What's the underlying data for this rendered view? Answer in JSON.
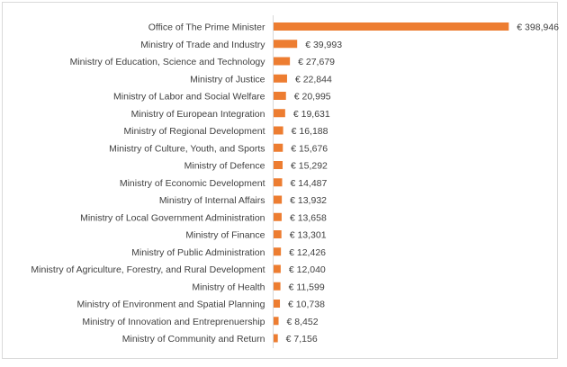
{
  "chart_data": {
    "type": "bar",
    "orientation": "horizontal",
    "title": "",
    "xlabel": "",
    "ylabel": "",
    "grid": false,
    "legend": "none",
    "bar_color": "#ed7d31",
    "axis_color": "#d9d9d9",
    "value_prefix": "€ ",
    "categories": [
      "Office of The Prime Minister",
      "Ministry of Trade and Industry",
      "Ministry of Education, Science and Technology",
      "Ministry of Justice",
      "Ministry of Labor and Social Welfare",
      "Ministry of European Integration",
      "Ministry of Regional Development",
      "Ministry of Culture, Youth, and Sports",
      "Ministry of Defence",
      "Ministry of Economic Development",
      "Ministry of Internal Affairs",
      "Ministry of Local Government Administration",
      "Ministry of Finance",
      "Ministry of Public Administration",
      "Ministry of Agriculture, Forestry, and Rural Development",
      "Ministry of Health",
      "Ministry of Environment and Spatial Planning",
      "Ministry of Innovation and Entreprenuership",
      "Ministry of Community and Return"
    ],
    "values": [
      398946,
      39993,
      27679,
      22844,
      20995,
      19631,
      16188,
      15676,
      15292,
      14487,
      13932,
      13658,
      13301,
      12426,
      12040,
      11599,
      10738,
      8452,
      7156
    ],
    "value_labels": [
      "€ 398,946",
      "€ 39,993",
      "€ 27,679",
      "€ 22,844",
      "€ 20,995",
      "€ 19,631",
      "€ 16,188",
      "€ 15,676",
      "€ 15,292",
      "€ 14,487",
      "€ 13,932",
      "€ 13,658",
      "€ 13,301",
      "€ 12,426",
      "€ 12,040",
      "€ 11,599",
      "€ 10,738",
      "€ 8,452",
      "€ 7,156"
    ],
    "xlim": [
      0,
      400000
    ]
  }
}
